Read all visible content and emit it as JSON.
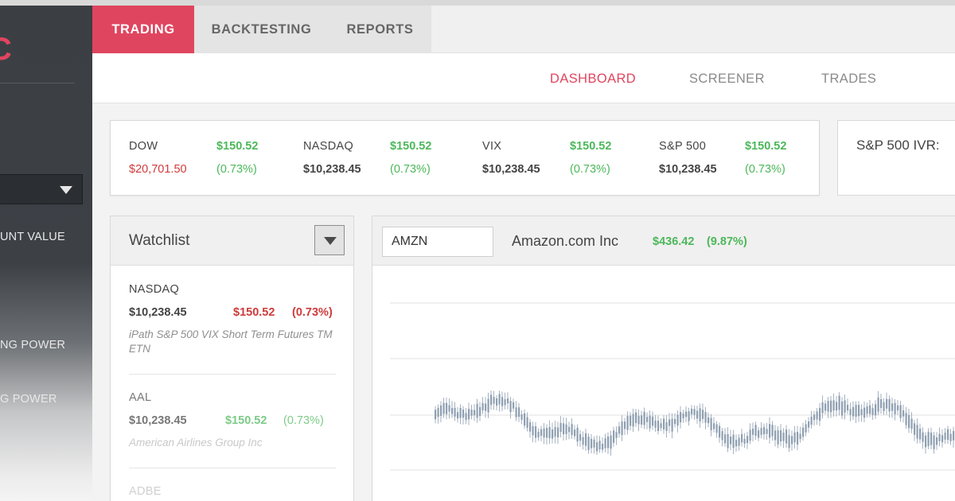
{
  "app": {
    "logo_text": "C",
    "colors": {
      "accent": "#e0455f",
      "positive": "#4cb85a",
      "negative": "#cf3b3b",
      "candle": "#8f9fb1"
    }
  },
  "sidebar": {
    "select_icon": "chevron-down-icon",
    "labels": [
      "UNT VALUE",
      "NG POWER",
      "G POWER"
    ]
  },
  "topnav": {
    "tabs": [
      {
        "label": "TRADING",
        "active": true
      },
      {
        "label": "BACKTESTING",
        "active": false
      },
      {
        "label": "REPORTS",
        "active": false
      }
    ]
  },
  "subnav": {
    "links": [
      {
        "label": "DASHBOARD",
        "active": true
      },
      {
        "label": "SCREENER",
        "active": false
      },
      {
        "label": "TRADES",
        "active": false
      }
    ]
  },
  "indices": [
    {
      "name": "DOW",
      "value": "$20,701.50",
      "change": "$150.52",
      "pct": "(0.73%)",
      "value_negative": true
    },
    {
      "name": "NASDAQ",
      "value": "$10,238.45",
      "change": "$150.52",
      "pct": "(0.73%)",
      "value_negative": false
    },
    {
      "name": "VIX",
      "value": "$10,238.45",
      "change": "$150.52",
      "pct": "(0.73%)",
      "value_negative": false
    },
    {
      "name": "S&P 500",
      "value": "$10,238.45",
      "change": "$150.52",
      "pct": "(0.73%)",
      "value_negative": false
    }
  ],
  "ivr": {
    "label": "S&P 500 IVR:"
  },
  "watchlist": {
    "title": "Watchlist",
    "items": [
      {
        "symbol": "NASDAQ",
        "price": "$10,238.45",
        "change": "$150.52",
        "pct": "(0.73%)",
        "description": "iPath S&P 500 VIX Short Term Futures TM ETN"
      },
      {
        "symbol": "AAL",
        "price": "$10,238.45",
        "change": "$150.52",
        "pct": "(0.73%)",
        "description": "American Airlines Group Inc"
      },
      {
        "symbol": "ADBE"
      }
    ]
  },
  "chart_panel": {
    "ticker_value": "AMZN",
    "company": "Amazon.com Inc",
    "price": "$436.42",
    "pct": "(9.87%)"
  }
}
